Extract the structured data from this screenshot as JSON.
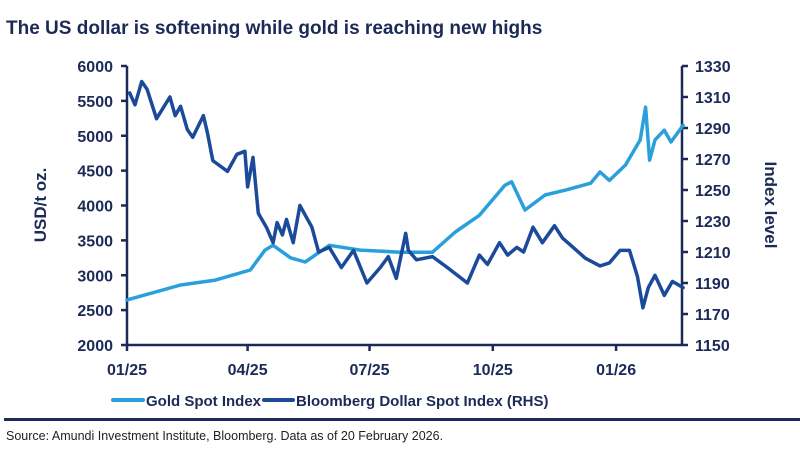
{
  "colors": {
    "text": "#1b2a57",
    "gold": "#2aa0db",
    "dollar": "#1c4a9a",
    "axis": "#1b2a57"
  },
  "chart_data": {
    "type": "line",
    "title": "The US dollar is softening while gold is reaching new highs",
    "xlabel": "",
    "ylabel": "USD/t oz.",
    "ylabel_right": "Index level",
    "x_ticks": [
      "01/25",
      "04/25",
      "07/25",
      "10/25",
      "01/26"
    ],
    "x_tick_dates": [
      "2025-01-01",
      "2025-04-01",
      "2025-07-01",
      "2025-10-01",
      "2026-01-01"
    ],
    "ylim": [
      2000,
      6000
    ],
    "y_ticks": [
      "2000",
      "2500",
      "3000",
      "3500",
      "4000",
      "4500",
      "5000",
      "5500",
      "6000"
    ],
    "ylim_right": [
      1150,
      1330
    ],
    "y_ticks_right": [
      "1150",
      "1170",
      "1190",
      "1210",
      "1230",
      "1250",
      "1270",
      "1290",
      "1310",
      "1330"
    ],
    "grid": false,
    "legend_position": "bottom",
    "series": [
      {
        "name": "Gold Spot Index",
        "axis": "left",
        "x": [
          "2025-01-01",
          "2025-02-10",
          "2025-03-08",
          "2025-04-03",
          "2025-04-14",
          "2025-04-20",
          "2025-05-03",
          "2025-05-14",
          "2025-06-01",
          "2025-06-24",
          "2025-07-24",
          "2025-08-17",
          "2025-09-03",
          "2025-09-21",
          "2025-10-10",
          "2025-10-15",
          "2025-10-25",
          "2025-11-09",
          "2025-11-24",
          "2025-12-13",
          "2025-12-20",
          "2025-12-27",
          "2026-01-08",
          "2026-01-19",
          "2026-01-23",
          "2026-01-26",
          "2026-01-30",
          "2026-02-06",
          "2026-02-11",
          "2026-02-20"
        ],
        "values": [
          2645,
          2860,
          2930,
          3075,
          3360,
          3430,
          3250,
          3190,
          3430,
          3360,
          3330,
          3330,
          3620,
          3860,
          4290,
          4340,
          3935,
          4150,
          4220,
          4320,
          4480,
          4360,
          4580,
          4940,
          5410,
          4650,
          4940,
          5080,
          4910,
          5150
        ]
      },
      {
        "name": "Bloomberg Dollar Spot Index (RHS)",
        "axis": "right",
        "x": [
          "2025-01-03",
          "2025-01-07",
          "2025-01-12",
          "2025-01-16",
          "2025-01-23",
          "2025-02-02",
          "2025-02-06",
          "2025-02-10",
          "2025-02-15",
          "2025-02-19",
          "2025-02-27",
          "2025-03-02",
          "2025-03-06",
          "2025-03-17",
          "2025-03-24",
          "2025-03-30",
          "2025-04-01",
          "2025-04-05",
          "2025-04-09",
          "2025-04-15",
          "2025-04-20",
          "2025-04-23",
          "2025-04-27",
          "2025-04-30",
          "2025-05-05",
          "2025-05-10",
          "2025-05-19",
          "2025-05-24",
          "2025-06-01",
          "2025-06-10",
          "2025-06-19",
          "2025-06-29",
          "2025-07-09",
          "2025-07-15",
          "2025-07-21",
          "2025-07-28",
          "2025-07-30",
          "2025-08-05",
          "2025-08-17",
          "2025-08-28",
          "2025-09-12",
          "2025-09-21",
          "2025-09-27",
          "2025-10-06",
          "2025-10-12",
          "2025-10-19",
          "2025-10-24",
          "2025-10-31",
          "2025-11-07",
          "2025-11-16",
          "2025-11-22",
          "2025-11-30",
          "2025-12-09",
          "2025-12-20",
          "2025-12-27",
          "2026-01-04",
          "2026-01-11",
          "2026-01-17",
          "2026-01-21",
          "2026-01-25",
          "2026-01-30",
          "2026-02-06",
          "2026-02-12",
          "2026-02-20"
        ],
        "values": [
          1312.6,
          1305,
          1320,
          1315,
          1296,
          1310,
          1298,
          1304,
          1289,
          1284,
          1298,
          1287,
          1269,
          1262,
          1273,
          1275,
          1252,
          1271,
          1235,
          1226,
          1216,
          1229,
          1221,
          1231,
          1216,
          1240,
          1226,
          1210,
          1213,
          1200,
          1211,
          1190,
          1200,
          1207,
          1193,
          1222,
          1211,
          1205,
          1207,
          1200,
          1190,
          1208,
          1202,
          1216,
          1208,
          1213,
          1210,
          1226,
          1216,
          1227,
          1219,
          1213,
          1206,
          1201,
          1203,
          1211,
          1211,
          1194,
          1174,
          1187,
          1195,
          1182,
          1191,
          1187
        ]
      }
    ],
    "source": "Source: Amundi Investment Institute, Bloomberg. Data as of 20 February 2026."
  }
}
